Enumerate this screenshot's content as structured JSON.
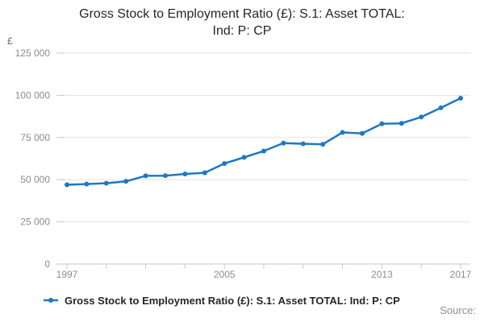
{
  "header": {
    "title_line1": "Gross Stock to Employment Ratio (£): S.1: Asset TOTAL:",
    "title_line2": "Ind: P: CP"
  },
  "legend": {
    "label": "Gross Stock to Employment Ratio (£): S.1: Asset TOTAL: Ind: P: CP"
  },
  "footer": {
    "source_label": "Source:"
  },
  "chart_data": {
    "type": "line",
    "title": "Gross Stock to Employment Ratio (£): S.1: Asset TOTAL: Ind: P: CP",
    "xlabel": "",
    "ylabel": "£",
    "x": [
      1997,
      1998,
      1999,
      2000,
      2001,
      2002,
      2003,
      2004,
      2005,
      2006,
      2007,
      2008,
      2009,
      2010,
      2011,
      2012,
      2013,
      2014,
      2015,
      2016,
      2017
    ],
    "series": [
      {
        "name": "Gross Stock to Employment Ratio (£): S.1: Asset TOTAL: Ind: P: CP",
        "values": [
          47000,
          47400,
          47900,
          49000,
          52300,
          52400,
          53400,
          54100,
          59600,
          63200,
          67000,
          71700,
          71300,
          71000,
          78000,
          77400,
          83100,
          83400,
          87100,
          92600,
          98300
        ]
      }
    ],
    "ylim": [
      0,
      125000
    ],
    "ytick_values": [
      0,
      25000,
      50000,
      75000,
      100000,
      125000
    ],
    "ytick_labels": [
      "0",
      "25 000",
      "50 000",
      "75 000",
      "100 000",
      "125 000"
    ],
    "xtick_step": 2,
    "xtick_label_years": [
      1997,
      2005,
      2013,
      2017
    ],
    "grid": true,
    "legend_position": "bottom",
    "colors": {
      "line": "#1e78c2",
      "grid": "#e2e2e2",
      "axis": "#bccbdd",
      "tick_label": "#8c8c8c",
      "title": "#262626"
    }
  }
}
